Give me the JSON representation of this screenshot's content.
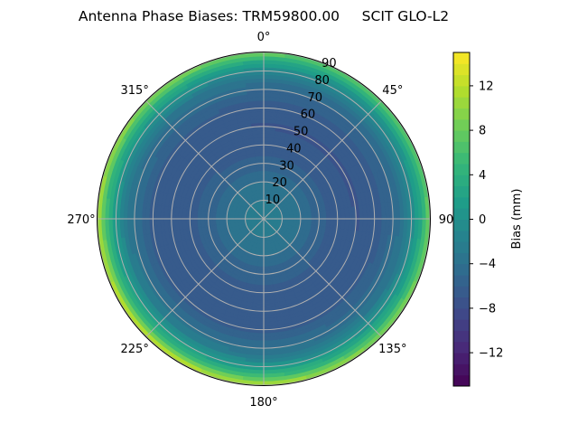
{
  "chart_data": {
    "type": "heatmap",
    "subtype": "polar-filled-contour",
    "title": "Antenna Phase Biases: TRM59800.00     SCIT GLO-L2",
    "colorbar": {
      "label": "Bias (mm)",
      "range": [
        -15,
        15
      ],
      "ticks": [
        -12,
        -8,
        -4,
        0,
        4,
        8,
        12
      ],
      "tick_labels": [
        "−12",
        "−8",
        "−4",
        "0",
        "4",
        "8",
        "12"
      ],
      "levels": 30,
      "colormap": "viridis"
    },
    "angular_axis": {
      "zero_location": "top",
      "direction": "clockwise",
      "ticks": [
        0,
        45,
        90,
        135,
        180,
        225,
        270,
        315
      ],
      "tick_labels": [
        "0°",
        "45°",
        "90",
        "135°",
        "180°",
        "225°",
        "270°",
        "315°"
      ]
    },
    "radial_axis": {
      "range": [
        0,
        90
      ],
      "ticks": [
        10,
        20,
        30,
        40,
        50,
        60,
        70,
        80,
        90
      ],
      "tick_labels": [
        "10",
        "20",
        "30",
        "40",
        "50",
        "60",
        "70",
        "80",
        "90"
      ]
    },
    "grid": true,
    "radial_profile": {
      "zenith": [
        0,
        10,
        20,
        30,
        40,
        50,
        60,
        70,
        75,
        80,
        85,
        90
      ],
      "bias": [
        -2,
        -3,
        -4,
        -5.5,
        -6.5,
        -7,
        -6.5,
        -4.5,
        -3,
        0,
        4,
        10
      ]
    },
    "edge_asymmetry": {
      "max_azimuth": 225,
      "amplitude": 2.5
    }
  }
}
